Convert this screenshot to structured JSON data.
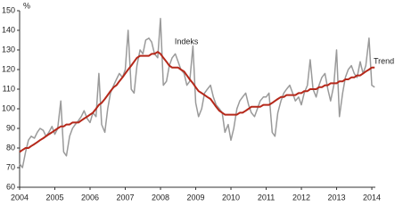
{
  "chart_data": {
    "type": "line",
    "y_label": "%",
    "x": [
      2004,
      2004.08,
      2004.17,
      2004.25,
      2004.33,
      2004.42,
      2004.5,
      2004.58,
      2004.67,
      2004.75,
      2004.83,
      2004.92,
      2005,
      2005.08,
      2005.17,
      2005.25,
      2005.33,
      2005.42,
      2005.5,
      2005.58,
      2005.67,
      2005.75,
      2005.83,
      2005.92,
      2006,
      2006.08,
      2006.17,
      2006.25,
      2006.33,
      2006.42,
      2006.5,
      2006.58,
      2006.67,
      2006.75,
      2006.83,
      2006.92,
      2007,
      2007.08,
      2007.17,
      2007.25,
      2007.33,
      2007.42,
      2007.5,
      2007.58,
      2007.67,
      2007.75,
      2007.83,
      2007.92,
      2008,
      2008.08,
      2008.17,
      2008.25,
      2008.33,
      2008.42,
      2008.5,
      2008.58,
      2008.67,
      2008.75,
      2008.83,
      2008.92,
      2009,
      2009.08,
      2009.17,
      2009.25,
      2009.33,
      2009.42,
      2009.5,
      2009.58,
      2009.67,
      2009.75,
      2009.83,
      2009.92,
      2010,
      2010.08,
      2010.17,
      2010.25,
      2010.33,
      2010.42,
      2010.5,
      2010.58,
      2010.67,
      2010.75,
      2010.83,
      2010.92,
      2011,
      2011.08,
      2011.17,
      2011.25,
      2011.33,
      2011.42,
      2011.5,
      2011.58,
      2011.67,
      2011.75,
      2011.83,
      2011.92,
      2012,
      2012.08,
      2012.17,
      2012.25,
      2012.33,
      2012.42,
      2012.5,
      2012.58,
      2012.67,
      2012.75,
      2012.83,
      2012.92,
      2013,
      2013.08,
      2013.17,
      2013.25,
      2013.33,
      2013.42,
      2013.5,
      2013.58,
      2013.67,
      2013.75,
      2013.83,
      2013.92,
      2014,
      2014.08
    ],
    "series": [
      {
        "name": "Indeks",
        "color": "#9a9a9a",
        "values": [
          72,
          70,
          78,
          84,
          86,
          85,
          88,
          90,
          89,
          86,
          88,
          91,
          87,
          90,
          104,
          78,
          76,
          86,
          90,
          92,
          94,
          96,
          99,
          95,
          93,
          98,
          96,
          118,
          92,
          88,
          100,
          108,
          112,
          115,
          118,
          116,
          120,
          140,
          110,
          108,
          122,
          130,
          128,
          135,
          136,
          134,
          128,
          126,
          146,
          112,
          114,
          122,
          126,
          128,
          124,
          120,
          118,
          112,
          114,
          132,
          103,
          96,
          100,
          108,
          110,
          112,
          106,
          102,
          100,
          98,
          88,
          92,
          84,
          90,
          100,
          104,
          106,
          108,
          102,
          98,
          96,
          100,
          104,
          106,
          106,
          108,
          88,
          86,
          98,
          104,
          108,
          110,
          112,
          108,
          104,
          106,
          102,
          108,
          112,
          125,
          110,
          106,
          112,
          116,
          118,
          110,
          104,
          112,
          130,
          96,
          108,
          116,
          120,
          122,
          118,
          116,
          124,
          118,
          122,
          136,
          112,
          111
        ]
      },
      {
        "name": "Trend",
        "color": "#b5281a",
        "values": [
          78,
          79,
          80,
          80,
          81,
          82,
          83,
          84,
          85,
          86,
          87,
          88,
          89,
          90,
          91,
          91,
          92,
          92,
          93,
          93,
          93,
          94,
          95,
          96,
          97,
          98,
          100,
          102,
          103,
          105,
          107,
          109,
          111,
          112,
          114,
          116,
          118,
          120,
          122,
          124,
          126,
          127,
          127,
          127,
          127,
          128,
          128,
          129,
          128,
          126,
          124,
          122,
          121,
          121,
          121,
          120,
          119,
          117,
          115,
          113,
          111,
          109,
          108,
          107,
          106,
          105,
          103,
          101,
          99,
          98,
          97,
          97,
          97,
          97,
          97,
          98,
          98,
          99,
          100,
          101,
          101,
          101,
          101,
          102,
          102,
          102,
          103,
          104,
          105,
          106,
          106,
          107,
          107,
          107,
          107,
          108,
          108,
          109,
          109,
          110,
          110,
          110,
          111,
          111,
          112,
          112,
          113,
          113,
          113,
          114,
          114,
          115,
          115,
          116,
          116,
          117,
          117,
          118,
          119,
          120,
          121,
          121
        ]
      }
    ],
    "xlim": [
      2004,
      2014.1
    ],
    "xticks": [
      2004,
      2005,
      2006,
      2007,
      2008,
      2009,
      2010,
      2011,
      2012,
      2013,
      2014
    ],
    "ylim": [
      60,
      150
    ],
    "yticks": [
      60,
      70,
      80,
      90,
      100,
      110,
      120,
      130,
      140,
      150
    ]
  }
}
